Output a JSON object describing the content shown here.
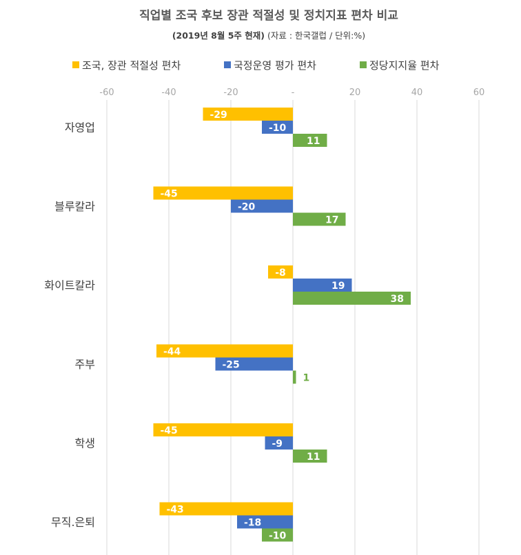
{
  "chart_data": {
    "type": "bar",
    "orientation": "horizontal",
    "title": "직업별 조국 후보 장관 적절성 및 정치지표  편차 비교",
    "subtitle_bold": "(2019년 8월 5주 현재)",
    "subtitle": "(자료 : 한국갤럽 / 단위:%)",
    "categories": [
      "자영업",
      "블루칼라",
      "화이트칼라",
      "주부",
      "학생",
      "무직.은퇴"
    ],
    "series": [
      {
        "name": "조국, 장관 적절성 편차",
        "color": "#FFC000",
        "values": [
          -29,
          -45,
          -8,
          -44,
          -45,
          -43
        ]
      },
      {
        "name": "국정운영 평가 편차",
        "color": "#4472C4",
        "values": [
          -10,
          -20,
          19,
          -25,
          -9,
          -18
        ]
      },
      {
        "name": "정당지지율 편차",
        "color": "#70AD47",
        "values": [
          11,
          17,
          38,
          1,
          11,
          -10
        ]
      }
    ],
    "xlim": [
      -60,
      60
    ],
    "xticks": [
      -60,
      -40,
      -20,
      0,
      20,
      40,
      60
    ],
    "xtick_labels": [
      "-60",
      "-40",
      "-20",
      "-",
      "20",
      "40",
      "60"
    ],
    "grid": true,
    "legend": "top"
  }
}
